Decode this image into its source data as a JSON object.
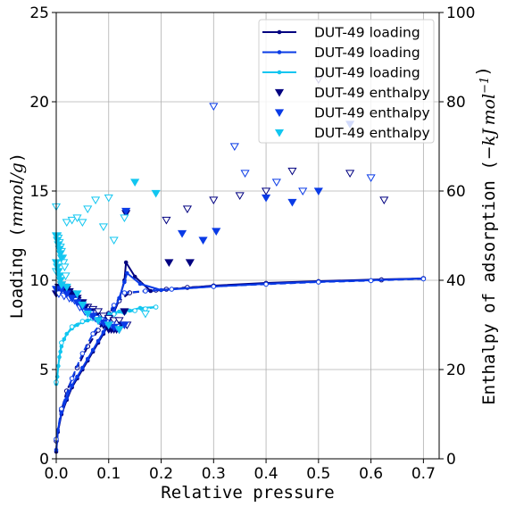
{
  "chart_data": {
    "type": "line",
    "xlabel": "Relative pressure",
    "ylabel_left": "Loading ($mmol/g$)",
    "ylabel_right": "Enthalpy of adsorption ($-kJ\\,mol^{-1}$)",
    "xlim": [
      0,
      0.73
    ],
    "ylim_left": [
      0,
      25
    ],
    "ylim_right": [
      0,
      100
    ],
    "x_ticks": [
      0.0,
      0.1,
      0.2,
      0.3,
      0.4,
      0.5,
      0.6,
      0.7
    ],
    "x_tick_labels": [
      "0.0",
      "0.1",
      "0.2",
      "0.3",
      "0.4",
      "0.5",
      "0.6",
      "0.7"
    ],
    "y_ticks_left": [
      0,
      5,
      10,
      15,
      20,
      25
    ],
    "y_tick_labels_left": [
      "0",
      "5",
      "10",
      "15",
      "20",
      "25"
    ],
    "y_ticks_right": [
      0,
      20,
      40,
      60,
      80,
      100
    ],
    "y_tick_labels_right": [
      "0",
      "20",
      "40",
      "60",
      "80",
      "100"
    ],
    "grid": true,
    "legend_position": "top-right",
    "legend": [
      {
        "label": "DUT-49 loading",
        "kind": "line",
        "color": "#000080"
      },
      {
        "label": "DUT-49 loading",
        "kind": "line",
        "color": "#0a3be6"
      },
      {
        "label": "DUT-49 loading",
        "kind": "line",
        "color": "#12c6f0"
      },
      {
        "label": "DUT-49 enthalpy",
        "kind": "marker",
        "color": "#000080"
      },
      {
        "label": "DUT-49 enthalpy",
        "kind": "marker",
        "color": "#0a3be6"
      },
      {
        "label": "DUT-49 enthalpy",
        "kind": "marker",
        "color": "#12c6f0"
      }
    ],
    "loading_series": [
      {
        "color": "#000080",
        "adsorption": [
          [
            0.0,
            0.4
          ],
          [
            0.003,
            1.5
          ],
          [
            0.01,
            2.5
          ],
          [
            0.02,
            3.3
          ],
          [
            0.03,
            4.0
          ],
          [
            0.04,
            4.5
          ],
          [
            0.05,
            5.0
          ],
          [
            0.06,
            5.5
          ],
          [
            0.07,
            6.0
          ],
          [
            0.08,
            6.5
          ],
          [
            0.09,
            7.0
          ],
          [
            0.1,
            7.6
          ],
          [
            0.11,
            8.2
          ],
          [
            0.12,
            8.9
          ],
          [
            0.13,
            10.0
          ],
          [
            0.133,
            11.0
          ],
          [
            0.15,
            10.2
          ],
          [
            0.18,
            9.4
          ],
          [
            0.22,
            9.5
          ],
          [
            0.3,
            9.7
          ],
          [
            0.4,
            9.85
          ],
          [
            0.5,
            9.95
          ],
          [
            0.62,
            10.05
          ],
          [
            0.7,
            10.1
          ]
        ],
        "desorption": [
          [
            0.7,
            10.1
          ],
          [
            0.62,
            10.02
          ],
          [
            0.5,
            9.92
          ],
          [
            0.4,
            9.82
          ],
          [
            0.3,
            9.68
          ],
          [
            0.25,
            9.6
          ],
          [
            0.21,
            9.5
          ],
          [
            0.19,
            9.45
          ],
          [
            0.14,
            9.3
          ],
          [
            0.12,
            8.85
          ],
          [
            0.1,
            8.15
          ],
          [
            0.08,
            7.2
          ],
          [
            0.06,
            6.3
          ],
          [
            0.04,
            5.1
          ],
          [
            0.02,
            3.8
          ],
          [
            0.01,
            2.7
          ],
          [
            0.0,
            1.0
          ]
        ]
      },
      {
        "color": "#0a3be6",
        "adsorption": [
          [
            0.0,
            0.5
          ],
          [
            0.003,
            1.6
          ],
          [
            0.01,
            2.6
          ],
          [
            0.02,
            3.4
          ],
          [
            0.03,
            4.1
          ],
          [
            0.04,
            4.6
          ],
          [
            0.05,
            5.1
          ],
          [
            0.06,
            5.6
          ],
          [
            0.07,
            6.1
          ],
          [
            0.08,
            6.6
          ],
          [
            0.09,
            7.1
          ],
          [
            0.1,
            7.7
          ],
          [
            0.11,
            8.3
          ],
          [
            0.12,
            9.0
          ],
          [
            0.13,
            9.9
          ],
          [
            0.135,
            10.4
          ],
          [
            0.16,
            9.8
          ],
          [
            0.2,
            9.45
          ],
          [
            0.3,
            9.65
          ],
          [
            0.4,
            9.8
          ],
          [
            0.5,
            9.92
          ],
          [
            0.6,
            10.0
          ],
          [
            0.7,
            10.1
          ]
        ],
        "desorption": [
          [
            0.7,
            10.08
          ],
          [
            0.6,
            9.98
          ],
          [
            0.5,
            9.9
          ],
          [
            0.4,
            9.78
          ],
          [
            0.3,
            9.65
          ],
          [
            0.22,
            9.5
          ],
          [
            0.17,
            9.4
          ],
          [
            0.13,
            9.3
          ],
          [
            0.11,
            8.6
          ],
          [
            0.09,
            7.8
          ],
          [
            0.07,
            7.0
          ],
          [
            0.05,
            5.9
          ],
          [
            0.03,
            4.5
          ],
          [
            0.01,
            2.8
          ],
          [
            0.0,
            1.1
          ]
        ]
      },
      {
        "color": "#12c6f0",
        "adsorption": [
          [
            0.0,
            4.2
          ],
          [
            0.002,
            4.6
          ],
          [
            0.004,
            5.2
          ],
          [
            0.006,
            5.7
          ],
          [
            0.008,
            6.0
          ],
          [
            0.01,
            6.3
          ],
          [
            0.015,
            6.7
          ],
          [
            0.02,
            7.0
          ],
          [
            0.03,
            7.3
          ],
          [
            0.04,
            7.5
          ],
          [
            0.05,
            7.65
          ],
          [
            0.06,
            7.75
          ],
          [
            0.08,
            7.9
          ],
          [
            0.1,
            8.1
          ],
          [
            0.12,
            8.25
          ],
          [
            0.14,
            8.3
          ],
          [
            0.16,
            8.45
          ],
          [
            0.19,
            8.5
          ]
        ],
        "desorption": [
          [
            0.19,
            8.5
          ],
          [
            0.17,
            8.4
          ],
          [
            0.15,
            8.3
          ],
          [
            0.13,
            8.2
          ],
          [
            0.11,
            8.1
          ],
          [
            0.09,
            8.0
          ],
          [
            0.07,
            7.85
          ],
          [
            0.05,
            7.7
          ],
          [
            0.03,
            7.4
          ],
          [
            0.01,
            6.5
          ],
          [
            0.0,
            4.3
          ]
        ]
      }
    ],
    "enthalpy_series": [
      {
        "color": "#000080",
        "filled": [
          [
            0.0,
            37
          ],
          [
            0.002,
            38
          ],
          [
            0.005,
            38.5
          ],
          [
            0.01,
            39
          ],
          [
            0.015,
            38.5
          ],
          [
            0.02,
            38
          ],
          [
            0.025,
            37.5
          ],
          [
            0.03,
            37
          ],
          [
            0.035,
            36.5
          ],
          [
            0.04,
            36
          ],
          [
            0.045,
            35
          ],
          [
            0.05,
            35
          ],
          [
            0.055,
            34
          ],
          [
            0.06,
            33
          ],
          [
            0.065,
            33
          ],
          [
            0.07,
            32
          ],
          [
            0.075,
            32
          ],
          [
            0.08,
            31
          ],
          [
            0.085,
            31
          ],
          [
            0.09,
            30
          ],
          [
            0.095,
            30
          ],
          [
            0.1,
            29
          ],
          [
            0.105,
            29
          ],
          [
            0.11,
            29
          ],
          [
            0.115,
            29
          ],
          [
            0.12,
            29
          ],
          [
            0.125,
            30
          ],
          [
            0.13,
            33
          ],
          [
            0.133,
            55
          ],
          [
            0.215,
            44
          ],
          [
            0.255,
            44
          ]
        ],
        "hollow": [
          [
            0.01,
            38
          ],
          [
            0.02,
            37
          ],
          [
            0.03,
            36.5
          ],
          [
            0.04,
            35.5
          ],
          [
            0.05,
            35
          ],
          [
            0.06,
            34
          ],
          [
            0.07,
            33.5
          ],
          [
            0.08,
            33
          ],
          [
            0.09,
            32
          ],
          [
            0.1,
            31.5
          ],
          [
            0.11,
            31
          ],
          [
            0.12,
            31
          ],
          [
            0.135,
            30
          ],
          [
            0.21,
            53.5
          ],
          [
            0.25,
            56
          ],
          [
            0.3,
            58
          ],
          [
            0.35,
            59
          ],
          [
            0.4,
            60
          ],
          [
            0.45,
            64.5
          ],
          [
            0.5,
            85
          ],
          [
            0.56,
            64
          ],
          [
            0.625,
            58
          ]
        ]
      },
      {
        "color": "#0a3be6",
        "filled": [
          [
            0.0,
            38
          ],
          [
            0.01,
            38
          ],
          [
            0.02,
            37
          ],
          [
            0.03,
            36
          ],
          [
            0.04,
            35
          ],
          [
            0.05,
            34
          ],
          [
            0.06,
            33
          ],
          [
            0.07,
            32
          ],
          [
            0.08,
            31
          ],
          [
            0.09,
            30.5
          ],
          [
            0.1,
            30
          ],
          [
            0.11,
            29.5
          ],
          [
            0.12,
            29
          ],
          [
            0.13,
            30
          ],
          [
            0.133,
            55.5
          ],
          [
            0.24,
            50.5
          ],
          [
            0.28,
            49
          ],
          [
            0.305,
            51
          ],
          [
            0.4,
            58.5
          ],
          [
            0.45,
            57.5
          ],
          [
            0.5,
            60
          ],
          [
            0.56,
            75
          ]
        ],
        "hollow": [
          [
            0.005,
            37
          ],
          [
            0.015,
            36.5
          ],
          [
            0.025,
            36
          ],
          [
            0.035,
            35.5
          ],
          [
            0.045,
            34
          ],
          [
            0.055,
            33
          ],
          [
            0.065,
            32.5
          ],
          [
            0.075,
            31.5
          ],
          [
            0.085,
            31
          ],
          [
            0.095,
            30.5
          ],
          [
            0.105,
            30
          ],
          [
            0.115,
            29.5
          ],
          [
            0.3,
            79
          ],
          [
            0.34,
            70
          ],
          [
            0.36,
            64
          ],
          [
            0.42,
            62
          ],
          [
            0.47,
            60
          ],
          [
            0.6,
            63
          ]
        ]
      },
      {
        "color": "#12c6f0",
        "filled": [
          [
            0.0,
            50
          ],
          [
            0.002,
            49
          ],
          [
            0.004,
            48
          ],
          [
            0.006,
            47
          ],
          [
            0.008,
            46
          ],
          [
            0.01,
            45
          ],
          [
            0.0,
            44
          ],
          [
            0.002,
            43
          ],
          [
            0.004,
            42
          ],
          [
            0.006,
            41
          ],
          [
            0.008,
            40
          ],
          [
            0.01,
            39
          ],
          [
            0.02,
            38.5
          ],
          [
            0.04,
            37
          ],
          [
            0.05,
            34.5
          ],
          [
            0.06,
            32.5
          ],
          [
            0.08,
            31
          ],
          [
            0.1,
            30
          ],
          [
            0.12,
            29
          ],
          [
            0.15,
            62
          ],
          [
            0.19,
            59.5
          ]
        ],
        "hollow": [
          [
            0.0,
            56.5
          ],
          [
            0.002,
            50
          ],
          [
            0.004,
            49.5
          ],
          [
            0.006,
            48.5
          ],
          [
            0.008,
            47.5
          ],
          [
            0.01,
            46.5
          ],
          [
            0.012,
            45
          ],
          [
            0.014,
            44
          ],
          [
            0.016,
            43
          ],
          [
            0.018,
            41
          ],
          [
            0.0,
            42
          ],
          [
            0.02,
            53
          ],
          [
            0.03,
            53.5
          ],
          [
            0.04,
            54
          ],
          [
            0.05,
            53
          ],
          [
            0.06,
            56
          ],
          [
            0.075,
            58
          ],
          [
            0.09,
            52
          ],
          [
            0.1,
            58.5
          ],
          [
            0.11,
            49
          ],
          [
            0.13,
            54
          ],
          [
            0.17,
            32.5
          ]
        ]
      }
    ]
  }
}
